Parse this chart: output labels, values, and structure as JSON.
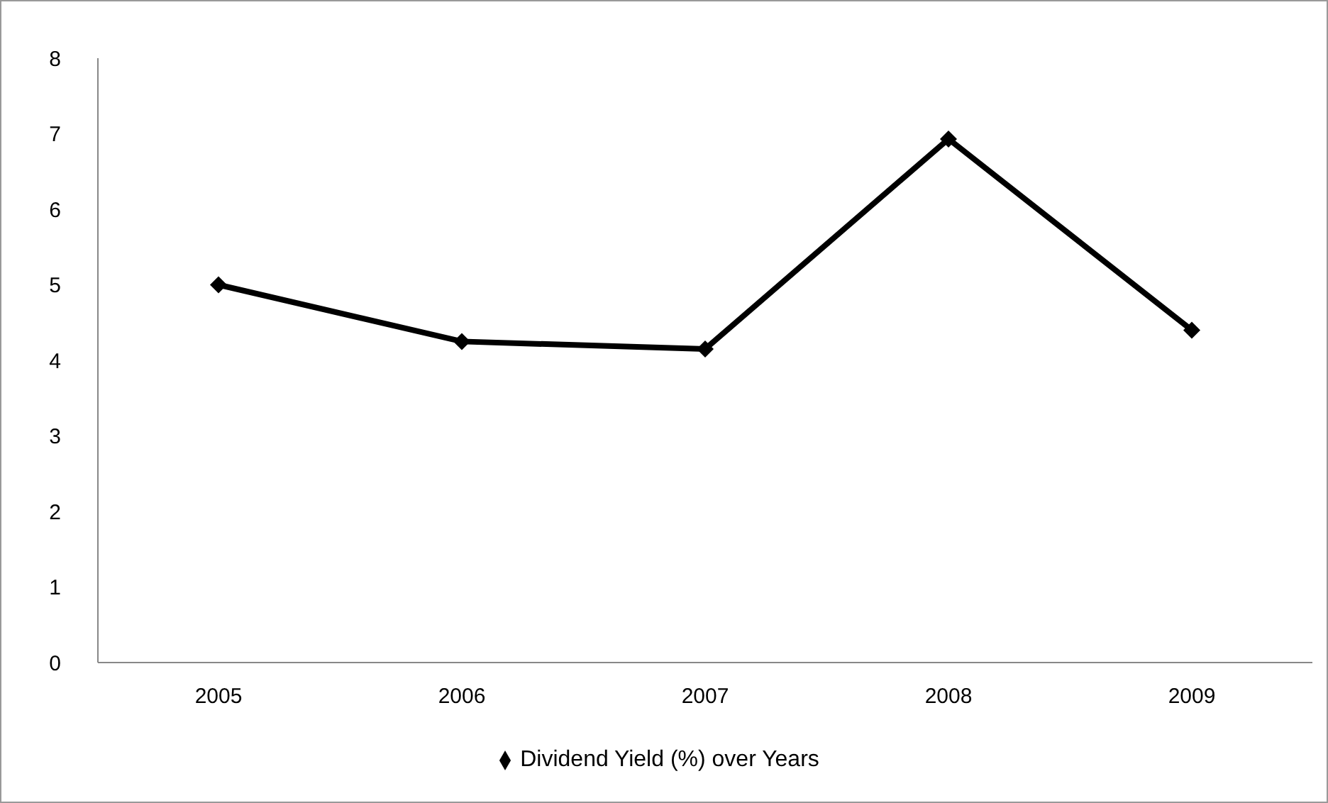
{
  "chart_data": {
    "type": "line",
    "categories": [
      "2005",
      "2006",
      "2007",
      "2008",
      "2009"
    ],
    "series": [
      {
        "name": "Dividend Yield (%) over Years",
        "color": "#000000",
        "values": [
          5.0,
          4.25,
          4.15,
          6.93,
          4.4
        ]
      }
    ],
    "ylim": [
      0,
      8
    ],
    "yticks": [
      0,
      1,
      2,
      3,
      4,
      5,
      6,
      7,
      8
    ],
    "grid": false,
    "legend": "bottom",
    "marker": "diamond",
    "line_style": "solid"
  }
}
